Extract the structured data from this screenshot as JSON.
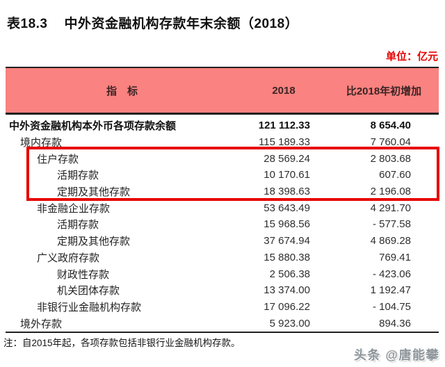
{
  "page": {
    "title_prefix": "表18.3",
    "title_main": "中外资金融机构存款年末余额（2018）",
    "unit_label": "单位：亿元",
    "note": "注：自2015年起，各项存款包括非银行业金融机构存款。",
    "watermark": "头条 @唐能攀"
  },
  "colors": {
    "header_bg": "#fa8280",
    "accent_red": "#e60000",
    "line_dark": "#1f1f1f",
    "watermark_gray": "#8e969c"
  },
  "table": {
    "columns": [
      "指　标",
      "2018",
      "比2018年初增加"
    ],
    "rows": [
      {
        "label": "中外资金融机构本外币各项存款余额",
        "v2018": "121 112.33",
        "increase": "8 654.40",
        "level": 0,
        "bold": true,
        "highlighted": false
      },
      {
        "label": "境内存款",
        "v2018": "115 189.33",
        "increase": "7 760.04",
        "level": 1,
        "bold": false,
        "highlighted": false
      },
      {
        "label": "住户存款",
        "v2018": "28 569.24",
        "increase": "2 803.68",
        "level": 2,
        "bold": false,
        "highlighted": true
      },
      {
        "label": "活期存款",
        "v2018": "10 170.61",
        "increase": "607.60",
        "level": 3,
        "bold": false,
        "highlighted": true
      },
      {
        "label": "定期及其他存款",
        "v2018": "18 398.63",
        "increase": "2 196.08",
        "level": 3,
        "bold": false,
        "highlighted": true
      },
      {
        "label": "非金融企业存款",
        "v2018": "53 643.49",
        "increase": "4 291.70",
        "level": 2,
        "bold": false,
        "highlighted": false
      },
      {
        "label": "活期存款",
        "v2018": "15 968.56",
        "increase": "- 577.58",
        "level": 3,
        "bold": false,
        "highlighted": false
      },
      {
        "label": "定期及其他存款",
        "v2018": "37 674.94",
        "increase": "4 869.28",
        "level": 3,
        "bold": false,
        "highlighted": false
      },
      {
        "label": "广义政府存款",
        "v2018": "15 880.38",
        "increase": "769.41",
        "level": 2,
        "bold": false,
        "highlighted": false
      },
      {
        "label": "财政性存款",
        "v2018": "2 506.38",
        "increase": "- 423.06",
        "level": 3,
        "bold": false,
        "highlighted": false
      },
      {
        "label": "机关团体存款",
        "v2018": "13 374.00",
        "increase": "1 192.47",
        "level": 3,
        "bold": false,
        "highlighted": false
      },
      {
        "label": "非银行业金融机构存款",
        "v2018": "17 096.22",
        "increase": "- 104.75",
        "level": 2,
        "bold": false,
        "highlighted": false
      },
      {
        "label": "境外存款",
        "v2018": "5 923.00",
        "increase": "894.36",
        "level": 1,
        "bold": false,
        "highlighted": false
      }
    ]
  }
}
